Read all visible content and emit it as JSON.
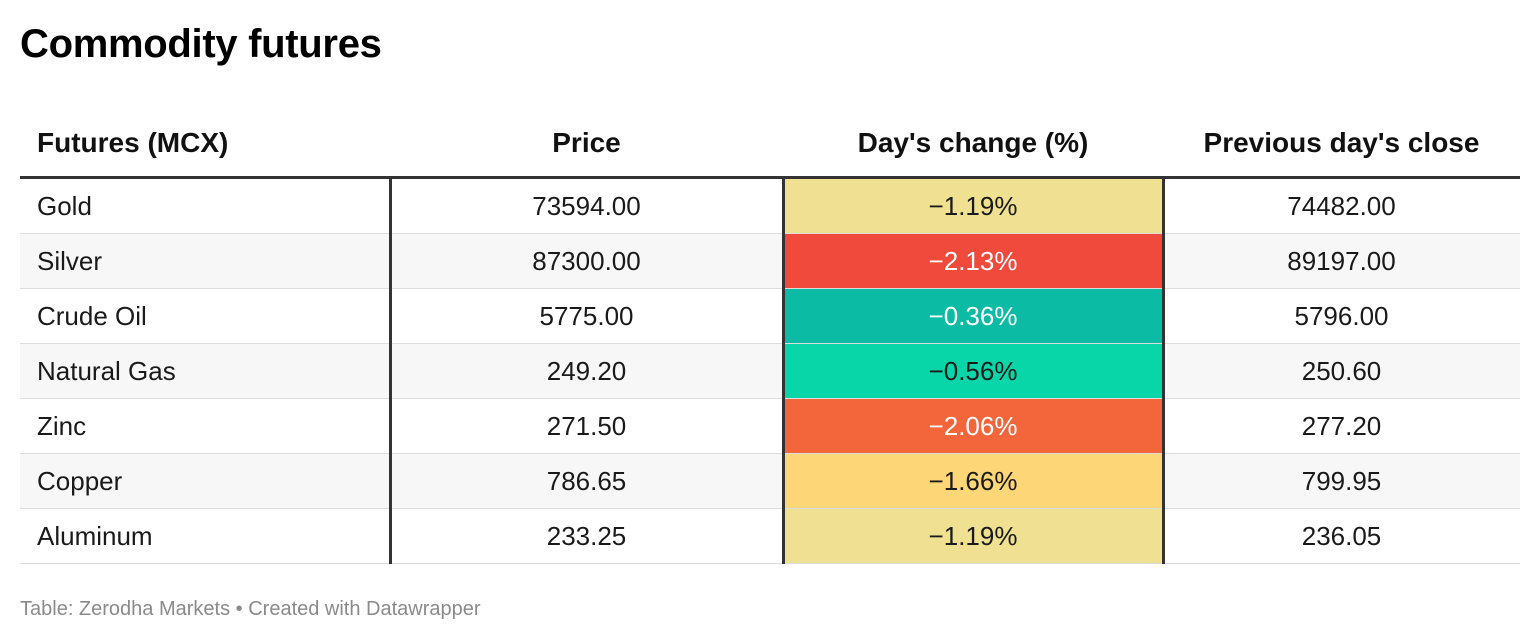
{
  "title": "Commodity futures",
  "footer": "Table: Zerodha Markets • Created with Datawrapper",
  "chart_data": {
    "type": "table",
    "title": "Commodity futures",
    "columns": [
      "Futures (MCX)",
      "Price",
      "Day's change (%)",
      "Previous day's close"
    ],
    "rows": [
      {
        "name": "Gold",
        "price": "73594.00",
        "change": "−1.19%",
        "change_value": -1.19,
        "prev_close": "74482.00",
        "color": "#efe092",
        "text_color": "#1a1a1a"
      },
      {
        "name": "Silver",
        "price": "87300.00",
        "change": "−2.13%",
        "change_value": -2.13,
        "prev_close": "89197.00",
        "color": "#ef4a3c",
        "text_color": "#ffffff"
      },
      {
        "name": "Crude Oil",
        "price": "5775.00",
        "change": "−0.36%",
        "change_value": -0.36,
        "prev_close": "5796.00",
        "color": "#0cbba4",
        "text_color": "#ffffff"
      },
      {
        "name": "Natural Gas",
        "price": "249.20",
        "change": "−0.56%",
        "change_value": -0.56,
        "prev_close": "250.60",
        "color": "#08d6a8",
        "text_color": "#1a1a1a"
      },
      {
        "name": "Zinc",
        "price": "271.50",
        "change": "−2.06%",
        "change_value": -2.06,
        "prev_close": "277.20",
        "color": "#f3653b",
        "text_color": "#ffffff"
      },
      {
        "name": "Copper",
        "price": "786.65",
        "change": "−1.66%",
        "change_value": -1.66,
        "prev_close": "799.95",
        "color": "#fdd677",
        "text_color": "#1a1a1a"
      },
      {
        "name": "Aluminum",
        "price": "233.25",
        "change": "−1.19%",
        "change_value": -1.19,
        "prev_close": "236.05",
        "color": "#efe092",
        "text_color": "#1a1a1a"
      }
    ]
  }
}
